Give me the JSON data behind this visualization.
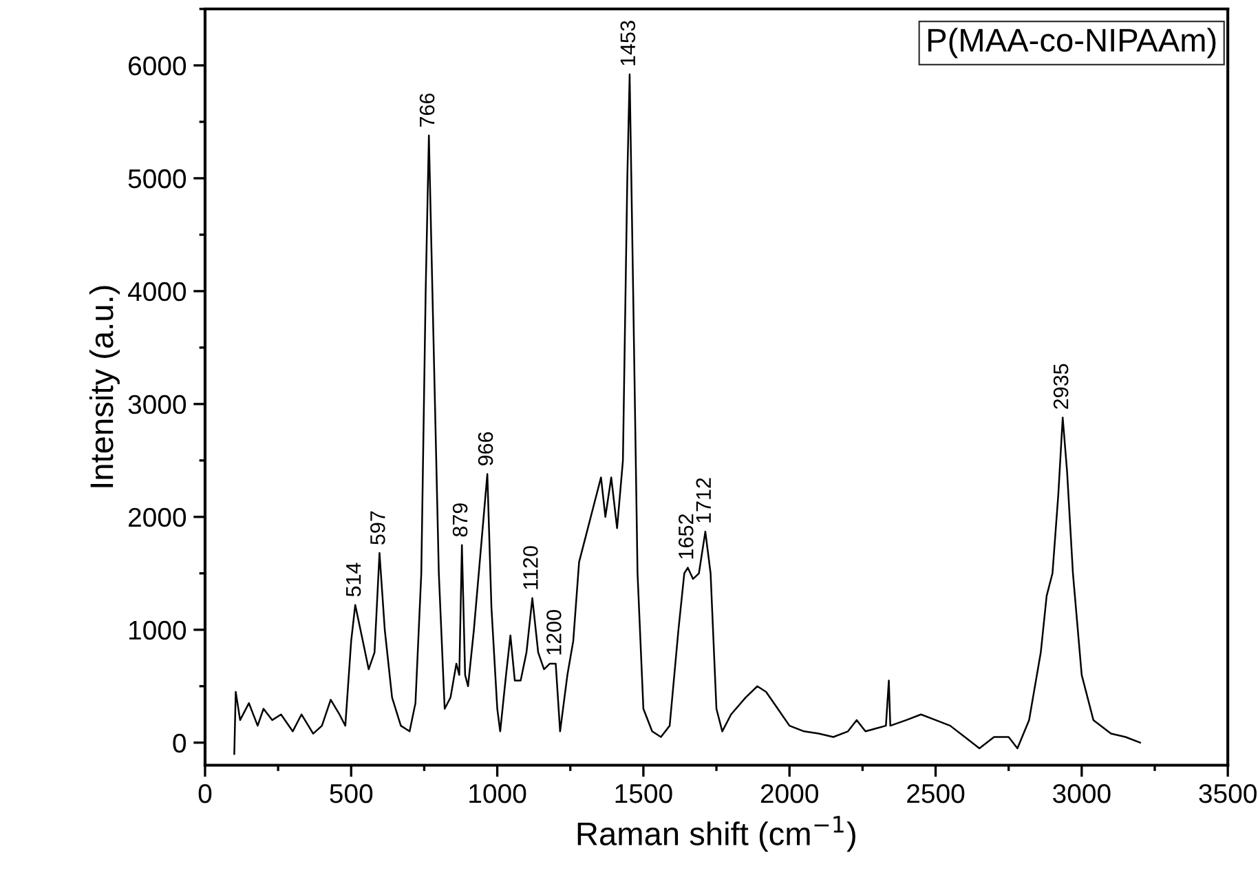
{
  "chart_data": {
    "type": "line",
    "xlabel": "Raman shift (cm$^{−1}$)",
    "ylabel": "Intensity (a.u.)",
    "xlim": [
      0,
      3500
    ],
    "xticks": [
      0,
      500,
      1000,
      1500,
      2000,
      2500,
      3000,
      3500
    ],
    "ylim": [
      -200,
      6500
    ],
    "yticks": [
      0,
      1000,
      2000,
      3000,
      4000,
      5000,
      6000
    ],
    "grid": false,
    "legend": false,
    "marker": "none",
    "line_style": "solid",
    "series": [
      {
        "color": "#000000",
        "x": [
          100,
          105,
          120,
          150,
          180,
          200,
          230,
          260,
          300,
          330,
          370,
          400,
          430,
          460,
          480,
          500,
          514,
          540,
          560,
          580,
          597,
          615,
          640,
          670,
          700,
          720,
          740,
          755,
          766,
          778,
          800,
          820,
          840,
          860,
          870,
          879,
          890,
          900,
          920,
          940,
          966,
          980,
          1000,
          1010,
          1030,
          1045,
          1060,
          1080,
          1100,
          1120,
          1140,
          1160,
          1180,
          1200,
          1215,
          1240,
          1260,
          1280,
          1300,
          1320,
          1340,
          1355,
          1370,
          1390,
          1410,
          1430,
          1445,
          1453,
          1465,
          1480,
          1500,
          1530,
          1560,
          1590,
          1620,
          1640,
          1652,
          1670,
          1690,
          1712,
          1730,
          1750,
          1770,
          1800,
          1850,
          1890,
          1920,
          1960,
          2000,
          2050,
          2100,
          2150,
          2200,
          2230,
          2260,
          2330,
          2340,
          2345,
          2400,
          2450,
          2500,
          2550,
          2600,
          2650,
          2700,
          2750,
          2780,
          2820,
          2860,
          2880,
          2900,
          2920,
          2935,
          2950,
          2970,
          3000,
          3040,
          3100,
          3150,
          3200
        ],
        "values": [
          -100,
          450,
          200,
          350,
          150,
          300,
          200,
          250,
          100,
          250,
          80,
          150,
          380,
          250,
          150,
          900,
          1220,
          900,
          650,
          800,
          1680,
          1000,
          400,
          150,
          100,
          350,
          1500,
          4000,
          5380,
          4000,
          1500,
          300,
          400,
          700,
          600,
          1750,
          600,
          500,
          1000,
          1600,
          2380,
          1200,
          300,
          100,
          600,
          950,
          550,
          550,
          800,
          1280,
          800,
          650,
          700,
          700,
          100,
          600,
          900,
          1600,
          1800,
          2000,
          2200,
          2350,
          2000,
          2350,
          1900,
          2500,
          5000,
          5920,
          4000,
          1500,
          300,
          100,
          50,
          150,
          1000,
          1500,
          1550,
          1450,
          1500,
          1870,
          1500,
          300,
          100,
          250,
          400,
          500,
          450,
          300,
          150,
          100,
          80,
          50,
          100,
          200,
          100,
          150,
          550,
          150,
          200,
          250,
          200,
          150,
          50,
          -50,
          50,
          50,
          -50,
          200,
          800,
          1300,
          1500,
          2200,
          2880,
          2400,
          1500,
          600,
          200,
          80,
          50,
          0
        ]
      }
    ],
    "annotations": [
      "P(MAA-co-NIPAAm)",
      {
        "text": "514",
        "x": 514,
        "y": 1220
      },
      {
        "text": "597",
        "x": 597,
        "y": 1680
      },
      {
        "text": "766",
        "x": 766,
        "y": 5380
      },
      {
        "text": "879",
        "x": 879,
        "y": 1750
      },
      {
        "text": "966",
        "x": 966,
        "y": 2380
      },
      {
        "text": "1120",
        "x": 1120,
        "y": 1280
      },
      {
        "text": "1200",
        "x": 1200,
        "y": 700
      },
      {
        "text": "1453",
        "x": 1453,
        "y": 5920
      },
      {
        "text": "1652",
        "x": 1652,
        "y": 1550
      },
      {
        "text": "1712",
        "x": 1712,
        "y": 1870
      },
      {
        "text": "2935",
        "x": 2935,
        "y": 2880
      }
    ]
  }
}
